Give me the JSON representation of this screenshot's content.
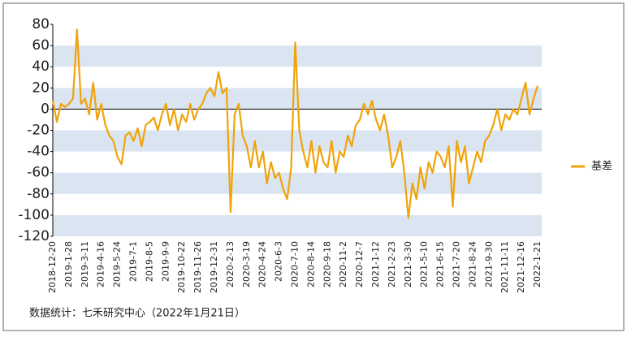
{
  "chart_data": {
    "type": "line",
    "categories": [
      "2018-12-20",
      null,
      null,
      null,
      "2019-1-28",
      null,
      null,
      null,
      "2019-3-11",
      null,
      null,
      null,
      "2019-4-16",
      null,
      null,
      null,
      "2019-5-24",
      null,
      null,
      null,
      "2019-7-1",
      null,
      null,
      null,
      "2019-8-5",
      null,
      null,
      null,
      "2019-9-9",
      null,
      null,
      null,
      "2019-10-22",
      null,
      null,
      null,
      "2019-11-26",
      null,
      null,
      null,
      "2019-12-31",
      null,
      null,
      null,
      "2020-2-13",
      null,
      null,
      null,
      "2020-3-19",
      null,
      null,
      null,
      "2020-4-24",
      null,
      null,
      null,
      "2020-6-3",
      null,
      null,
      null,
      "2020-7-10",
      null,
      null,
      null,
      "2020-8-14",
      null,
      null,
      null,
      "2020-9-18",
      null,
      null,
      null,
      "2020-11-2",
      null,
      null,
      null,
      "2020-12-7",
      null,
      null,
      null,
      "2021-1-12",
      null,
      null,
      null,
      "2021-2-23",
      null,
      null,
      null,
      "2021-3-30",
      null,
      null,
      null,
      "2021-5-10",
      null,
      null,
      null,
      "2021-6-15",
      null,
      null,
      null,
      "2021-7-20",
      null,
      null,
      null,
      "2021-8-24",
      null,
      null,
      null,
      "2021-9-30",
      null,
      null,
      null,
      "2021-11-11",
      null,
      null,
      null,
      "2021-12-16",
      null,
      null,
      null,
      "2022-1-21"
    ],
    "series": [
      {
        "name": "基差",
        "color": "#f0a30a",
        "values": [
          8,
          -12,
          5,
          2,
          5,
          10,
          75,
          5,
          10,
          -5,
          25,
          -10,
          5,
          -15,
          -25,
          -30,
          -45,
          -52,
          -25,
          -22,
          -30,
          -18,
          -35,
          -15,
          -12,
          -8,
          -20,
          -5,
          5,
          -15,
          0,
          -20,
          -5,
          -12,
          5,
          -10,
          0,
          5,
          15,
          20,
          12,
          35,
          15,
          20,
          -97,
          -5,
          5,
          -25,
          -35,
          -55,
          -30,
          -55,
          -40,
          -70,
          -50,
          -65,
          -60,
          -75,
          -85,
          -55,
          63,
          -20,
          -40,
          -55,
          -30,
          -60,
          -35,
          -50,
          -55,
          -30,
          -60,
          -40,
          -45,
          -25,
          -35,
          -15,
          -10,
          5,
          -5,
          8,
          -10,
          -20,
          -5,
          -25,
          -55,
          -45,
          -30,
          -60,
          -103,
          -70,
          -85,
          -55,
          -75,
          -50,
          -60,
          -40,
          -45,
          -55,
          -35,
          -92,
          -30,
          -50,
          -35,
          -70,
          -55,
          -40,
          -50,
          -30,
          -25,
          -15,
          0,
          -20,
          -5,
          -10,
          0,
          -5,
          10,
          25,
          -5,
          10,
          22
        ]
      }
    ],
    "ylim": [
      -120,
      80
    ],
    "yticks": [
      -120,
      -100,
      -80,
      -60,
      -40,
      -20,
      0,
      20,
      40,
      60,
      80
    ],
    "grid": "bands",
    "legend": "right",
    "source": "数据统计：七禾研究中心（2022年1月21日）"
  }
}
